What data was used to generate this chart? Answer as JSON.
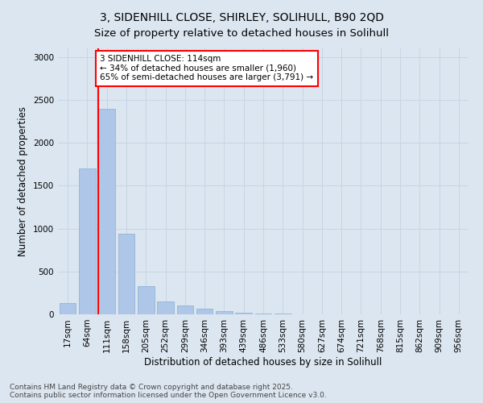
{
  "title_line1": "3, SIDENHILL CLOSE, SHIRLEY, SOLIHULL, B90 2QD",
  "title_line2": "Size of property relative to detached houses in Solihull",
  "xlabel": "Distribution of detached houses by size in Solihull",
  "ylabel": "Number of detached properties",
  "categories": [
    "17sqm",
    "64sqm",
    "111sqm",
    "158sqm",
    "205sqm",
    "252sqm",
    "299sqm",
    "346sqm",
    "393sqm",
    "439sqm",
    "486sqm",
    "533sqm",
    "580sqm",
    "627sqm",
    "674sqm",
    "721sqm",
    "768sqm",
    "815sqm",
    "862sqm",
    "909sqm",
    "956sqm"
  ],
  "values": [
    130,
    1700,
    2400,
    940,
    330,
    155,
    100,
    65,
    40,
    20,
    10,
    5,
    2,
    0,
    0,
    0,
    0,
    0,
    0,
    0,
    0
  ],
  "bar_color": "#aec6e8",
  "bar_edge_color": "#8aafd4",
  "grid_color": "#c8d4e4",
  "vline_x": 2,
  "vline_color": "red",
  "annotation_text": "3 SIDENHILL CLOSE: 114sqm\n← 34% of detached houses are smaller (1,960)\n65% of semi-detached houses are larger (3,791) →",
  "annotation_box_color": "white",
  "annotation_box_edge_color": "red",
  "ylim": [
    0,
    3100
  ],
  "yticks": [
    0,
    500,
    1000,
    1500,
    2000,
    2500,
    3000
  ],
  "background_color": "#dce6f0",
  "plot_background_color": "#dce6f0",
  "footnote": "Contains HM Land Registry data © Crown copyright and database right 2025.\nContains public sector information licensed under the Open Government Licence v3.0.",
  "title_fontsize": 10,
  "axis_label_fontsize": 8.5,
  "tick_fontsize": 7.5,
  "annotation_fontsize": 7.5,
  "footnote_fontsize": 6.5
}
